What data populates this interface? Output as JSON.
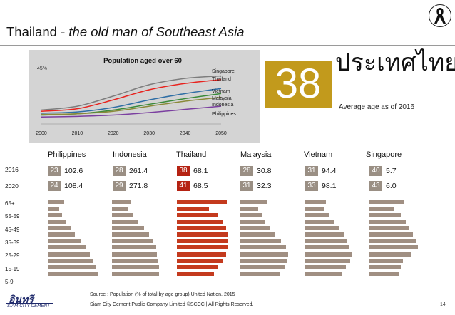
{
  "slide": {
    "title_main": "Thailand - ",
    "title_italic": "the old man of Southeast Asia",
    "big_number": "38",
    "thai_heading": "ประเทศไทย",
    "avg_caption": "Average age as  of 2016",
    "page_number": "14"
  },
  "chart_data": {
    "type": "line",
    "title": "Population aged over 60",
    "ymax_label": "45%",
    "x": [
      2000,
      2010,
      2020,
      2030,
      2040,
      2050
    ],
    "x_tick_labels": [
      "2000",
      "2010",
      "2020",
      "2030",
      "2040",
      "2050"
    ],
    "ylim": [
      0,
      45
    ],
    "series": [
      {
        "name": "Singapore",
        "color": "#7d7d7d",
        "values": [
          11,
          14,
          22,
          31,
          36,
          38
        ]
      },
      {
        "name": "Thailand",
        "color": "#e8231e",
        "values": [
          10,
          12,
          19,
          27,
          32,
          35
        ]
      },
      {
        "name": "Vietnam",
        "color": "#2f6ea5",
        "values": [
          8.5,
          9.5,
          13,
          19,
          24,
          28
        ]
      },
      {
        "name": "Malaysia",
        "color": "#3a8a3a",
        "values": [
          7,
          8,
          11,
          15.5,
          20,
          24
        ]
      },
      {
        "name": "Indonesia",
        "color": "#8a8a3a",
        "values": [
          7.5,
          8,
          10,
          14,
          18,
          21
        ]
      },
      {
        "name": "Philippines",
        "color": "#7b3fa0",
        "values": [
          5.5,
          6,
          7,
          9,
          11.5,
          14
        ]
      }
    ]
  },
  "countries": [
    {
      "name": "Philippines",
      "age_2016": "23",
      "pop_2016": "102.6",
      "age_2020": "24",
      "pop_2020": "108.4",
      "bars": [
        0.22,
        0.15,
        0.19,
        0.24,
        0.31,
        0.37,
        0.45,
        0.52,
        0.58,
        0.63,
        0.67,
        0.7
      ]
    },
    {
      "name": "Indonesia",
      "age_2016": "28",
      "pop_2016": "261.4",
      "age_2020": "29",
      "pop_2020": "271.8",
      "bars": [
        0.27,
        0.23,
        0.3,
        0.37,
        0.45,
        0.52,
        0.58,
        0.62,
        0.63,
        0.64,
        0.66,
        0.66
      ]
    },
    {
      "name": "Thailand",
      "age_2016": "38",
      "pop_2016": "68.1",
      "age_2020": "41",
      "pop_2020": "68.5",
      "bars": [
        0.7,
        0.45,
        0.58,
        0.65,
        0.69,
        0.71,
        0.72,
        0.72,
        0.69,
        0.64,
        0.58,
        0.52
      ]
    },
    {
      "name": "Malaysia",
      "age_2016": "28",
      "pop_2016": "30.8",
      "age_2020": "31",
      "pop_2020": "32.3",
      "bars": [
        0.37,
        0.25,
        0.3,
        0.35,
        0.42,
        0.48,
        0.57,
        0.64,
        0.67,
        0.66,
        0.62,
        0.56
      ]
    },
    {
      "name": "Vietnam",
      "age_2016": "31",
      "pop_2016": "94.4",
      "age_2020": "33",
      "pop_2020": "98.1",
      "bars": [
        0.29,
        0.26,
        0.33,
        0.41,
        0.48,
        0.54,
        0.59,
        0.62,
        0.65,
        0.63,
        0.57,
        0.52
      ]
    },
    {
      "name": "Singapore",
      "age_2016": "40",
      "pop_2016": "5.7",
      "age_2020": "43",
      "pop_2020": "6.0",
      "bars": [
        0.49,
        0.34,
        0.44,
        0.51,
        0.56,
        0.61,
        0.66,
        0.68,
        0.58,
        0.47,
        0.44,
        0.41
      ]
    }
  ],
  "year_labels": [
    "2016",
    "2020"
  ],
  "age_labels": [
    "65+",
    "55-59",
    "45-49",
    "35-39",
    "25-29",
    "15-19",
    "5-9"
  ],
  "highlight_country": "Thailand",
  "colors": {
    "bar": "#a08f82",
    "bar_highlight": "#c43a1e",
    "badge": "#9a8f84",
    "badge_highlight": "#b52212",
    "gold": "#c29a1c",
    "chart_bg": "#d4d4d4"
  },
  "footer": {
    "logo_text": "อินทรี",
    "logo_sub": "SIAM CITY CEMENT",
    "source": "Source : Population (% of total by age group) United Nation, 2015",
    "copyright": "Siam City Cement Public Company Limited ©SCCC | All Rights Reserved."
  },
  "icons": {
    "ribbon": "black-ribbon-icon"
  }
}
